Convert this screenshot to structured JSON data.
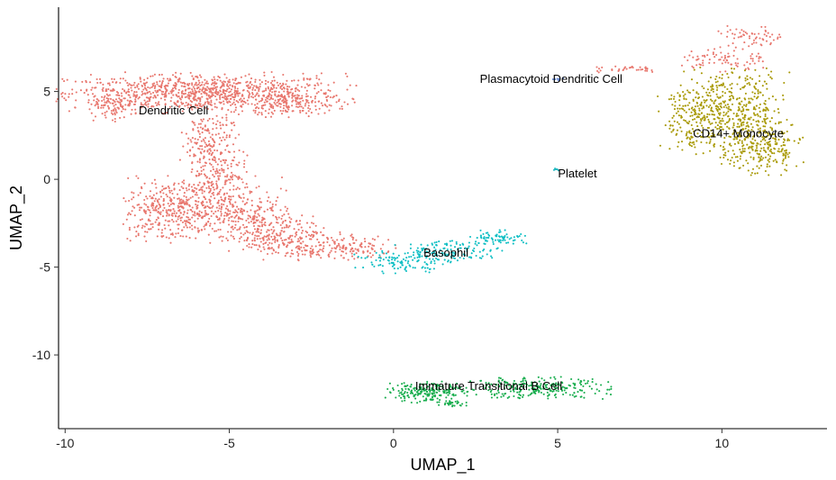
{
  "chart_data": {
    "type": "scatter",
    "title": "",
    "xlabel": "UMAP_1",
    "ylabel": "UMAP_2",
    "xlim": [
      -10.2,
      13.2
    ],
    "ylim": [
      -14.2,
      9.8
    ],
    "x_ticks": [
      -10,
      -5,
      0,
      5,
      10
    ],
    "y_ticks": [
      -10,
      -5,
      0,
      5
    ],
    "grid": false,
    "legend": "none",
    "clusters": [
      {
        "name": "Dendritic Cell",
        "color": "#e8776e",
        "label_pos": [
          -6.7,
          3.7
        ],
        "regions": [
          {
            "center": [
              -5.7,
              4.9
            ],
            "spread": [
              2.1,
              0.55
            ],
            "points": 950
          },
          {
            "center": [
              -8.6,
              4.3
            ],
            "spread": [
              0.35,
              0.5
            ],
            "points": 90
          },
          {
            "center": [
              -3.0,
              4.3
            ],
            "spread": [
              0.8,
              0.35
            ],
            "points": 130
          },
          {
            "center": [
              -5.6,
              2.2
            ],
            "spread": [
              0.45,
              0.9
            ],
            "points": 150
          },
          {
            "center": [
              -5.4,
              0.4
            ],
            "spread": [
              0.45,
              0.8
            ],
            "points": 150
          },
          {
            "center": [
              -5.8,
              -1.5
            ],
            "spread": [
              1.2,
              0.8
            ],
            "points": 420
          },
          {
            "center": [
              -7.0,
              -1.9
            ],
            "spread": [
              0.55,
              0.9
            ],
            "points": 160
          },
          {
            "center": [
              -4.2,
              -2.8
            ],
            "spread": [
              1.0,
              0.6
            ],
            "points": 250
          },
          {
            "center": [
              -2.6,
              -3.8
            ],
            "spread": [
              0.9,
              0.4
            ],
            "points": 180
          },
          {
            "center": [
              -1.0,
              -3.9
            ],
            "spread": [
              0.5,
              0.35
            ],
            "points": 70
          },
          {
            "center": [
              7.0,
              6.3
            ],
            "spread": [
              0.55,
              0.1
            ],
            "points": 35
          },
          {
            "center": [
              10.1,
              6.8
            ],
            "spread": [
              0.7,
              0.35
            ],
            "points": 80
          },
          {
            "center": [
              10.9,
              8.1
            ],
            "spread": [
              0.5,
              0.3
            ],
            "points": 60
          }
        ]
      },
      {
        "name": "Plasmacytoid Dendritic Cell",
        "color": "#6a8cd4",
        "label_pos": [
          4.8,
          5.5
        ],
        "regions": [
          {
            "center": [
              5.0,
              5.7
            ],
            "spread": [
              0.12,
              0.06
            ],
            "points": 8
          }
        ]
      },
      {
        "name": "CD14+ Monocyte",
        "color": "#a99a08",
        "label_pos": [
          10.5,
          2.4
        ],
        "regions": [
          {
            "center": [
              10.3,
              3.8
            ],
            "spread": [
              0.9,
              1.2
            ],
            "points": 480
          },
          {
            "center": [
              11.2,
              1.7
            ],
            "spread": [
              0.6,
              0.8
            ],
            "points": 220
          },
          {
            "center": [
              9.1,
              3.5
            ],
            "spread": [
              0.5,
              0.9
            ],
            "points": 120
          }
        ]
      },
      {
        "name": "Platelet",
        "color": "#20b8c0",
        "label_pos": [
          5.6,
          0.1
        ],
        "regions": [
          {
            "center": [
              4.95,
              0.55
            ],
            "spread": [
              0.06,
              0.06
            ],
            "points": 6
          }
        ]
      },
      {
        "name": "Basophil",
        "color": "#0fbfc4",
        "label_pos": [
          1.6,
          -4.4
        ],
        "regions": [
          {
            "center": [
              0.3,
              -4.7
            ],
            "spread": [
              0.7,
              0.3
            ],
            "points": 110
          },
          {
            "center": [
              1.8,
              -4.1
            ],
            "spread": [
              0.8,
              0.3
            ],
            "points": 130
          },
          {
            "center": [
              3.2,
              -3.3
            ],
            "spread": [
              0.4,
              0.22
            ],
            "points": 70
          }
        ]
      },
      {
        "name": "Immature Transitional B Cell",
        "color": "#1aae4f",
        "label_pos": [
          2.9,
          -12.0
        ],
        "regions": [
          {
            "center": [
              1.0,
              -12.1
            ],
            "spread": [
              0.6,
              0.3
            ],
            "points": 200
          },
          {
            "center": [
              4.3,
              -11.9
            ],
            "spread": [
              1.1,
              0.3
            ],
            "points": 260
          },
          {
            "center": [
              1.9,
              -12.8
            ],
            "spread": [
              0.3,
              0.12
            ],
            "points": 25
          }
        ]
      }
    ]
  }
}
